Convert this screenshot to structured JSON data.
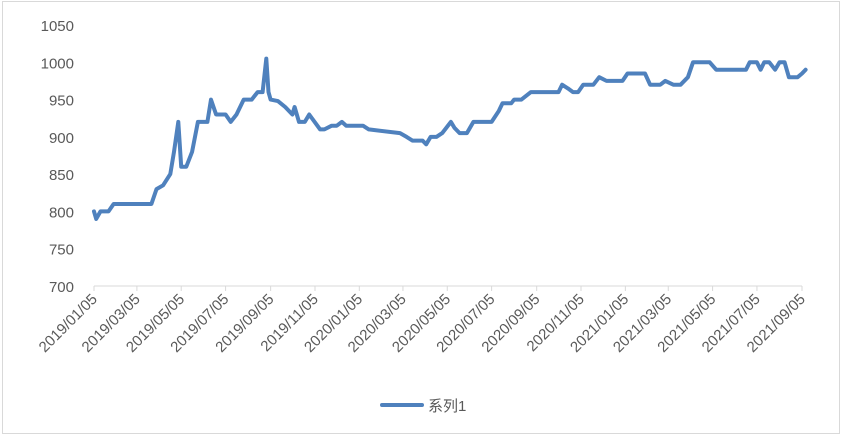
{
  "chart_data": {
    "type": "line",
    "title": "",
    "xlabel": "",
    "ylabel": "",
    "ylim": [
      700,
      1050
    ],
    "yticks": [
      700,
      750,
      800,
      850,
      900,
      950,
      1000,
      1050
    ],
    "xticks": [
      "2019/01/05",
      "2019/03/05",
      "2019/05/05",
      "2019/07/05",
      "2019/09/05",
      "2019/11/05",
      "2020/01/05",
      "2020/03/05",
      "2020/05/05",
      "2020/07/05",
      "2020/09/05",
      "2020/11/05",
      "2021/01/05",
      "2021/03/05",
      "2021/05/05",
      "2021/07/05",
      "2021/09/05"
    ],
    "grid": false,
    "legend": "bottom",
    "series": [
      {
        "name": "系列1",
        "color": "#4F81BD",
        "points": [
          [
            "2019/01/05",
            800
          ],
          [
            "2019/01/08",
            790
          ],
          [
            "2019/01/14",
            800
          ],
          [
            "2019/01/25",
            800
          ],
          [
            "2019/02/01",
            810
          ],
          [
            "2019/02/15",
            810
          ],
          [
            "2019/03/25",
            810
          ],
          [
            "2019/04/01",
            830
          ],
          [
            "2019/04/10",
            835
          ],
          [
            "2019/04/20",
            850
          ],
          [
            "2019/04/25",
            880
          ],
          [
            "2019/05/01",
            920
          ],
          [
            "2019/05/05",
            860
          ],
          [
            "2019/05/12",
            860
          ],
          [
            "2019/05/20",
            880
          ],
          [
            "2019/05/28",
            920
          ],
          [
            "2019/06/10",
            920
          ],
          [
            "2019/06/15",
            950
          ],
          [
            "2019/06/22",
            930
          ],
          [
            "2019/07/05",
            930
          ],
          [
            "2019/07/12",
            920
          ],
          [
            "2019/07/20",
            930
          ],
          [
            "2019/07/30",
            950
          ],
          [
            "2019/08/10",
            950
          ],
          [
            "2019/08/18",
            960
          ],
          [
            "2019/08/25",
            960
          ],
          [
            "2019/08/30",
            1005
          ],
          [
            "2019/09/02",
            960
          ],
          [
            "2019/09/05",
            950
          ],
          [
            "2019/09/15",
            948
          ],
          [
            "2019/09/25",
            940
          ],
          [
            "2019/10/05",
            930
          ],
          [
            "2019/10/08",
            940
          ],
          [
            "2019/10/14",
            920
          ],
          [
            "2019/10/22",
            920
          ],
          [
            "2019/10/28",
            930
          ],
          [
            "2019/11/12",
            910
          ],
          [
            "2019/11/18",
            910
          ],
          [
            "2019/11/28",
            915
          ],
          [
            "2019/12/05",
            915
          ],
          [
            "2019/12/12",
            920
          ],
          [
            "2019/12/18",
            915
          ],
          [
            "2020/01/10",
            915
          ],
          [
            "2020/01/18",
            910
          ],
          [
            "2020/03/01",
            905
          ],
          [
            "2020/03/10",
            900
          ],
          [
            "2020/03/18",
            895
          ],
          [
            "2020/04/01",
            895
          ],
          [
            "2020/04/06",
            890
          ],
          [
            "2020/04/12",
            900
          ],
          [
            "2020/04/20",
            900
          ],
          [
            "2020/04/28",
            905
          ],
          [
            "2020/05/10",
            920
          ],
          [
            "2020/05/15",
            912
          ],
          [
            "2020/05/22",
            905
          ],
          [
            "2020/06/01",
            905
          ],
          [
            "2020/06/10",
            920
          ],
          [
            "2020/06/25",
            920
          ],
          [
            "2020/07/05",
            920
          ],
          [
            "2020/07/15",
            935
          ],
          [
            "2020/07/20",
            945
          ],
          [
            "2020/08/01",
            945
          ],
          [
            "2020/08/05",
            950
          ],
          [
            "2020/08/15",
            950
          ],
          [
            "2020/08/28",
            960
          ],
          [
            "2020/09/10",
            960
          ],
          [
            "2020/10/05",
            960
          ],
          [
            "2020/10/10",
            970
          ],
          [
            "2020/10/18",
            965
          ],
          [
            "2020/10/25",
            960
          ],
          [
            "2020/11/01",
            960
          ],
          [
            "2020/11/08",
            970
          ],
          [
            "2020/11/15",
            970
          ],
          [
            "2020/11/22",
            970
          ],
          [
            "2020/11/30",
            980
          ],
          [
            "2020/12/10",
            975
          ],
          [
            "2021/01/01",
            975
          ],
          [
            "2021/01/08",
            985
          ],
          [
            "2021/02/01",
            985
          ],
          [
            "2021/02/08",
            970
          ],
          [
            "2021/02/22",
            970
          ],
          [
            "2021/03/01",
            975
          ],
          [
            "2021/03/12",
            970
          ],
          [
            "2021/03/22",
            970
          ],
          [
            "2021/04/01",
            980
          ],
          [
            "2021/04/08",
            1000
          ],
          [
            "2021/05/01",
            1000
          ],
          [
            "2021/05/10",
            990
          ],
          [
            "2021/06/20",
            990
          ],
          [
            "2021/06/25",
            1000
          ],
          [
            "2021/07/05",
            1000
          ],
          [
            "2021/07/10",
            990
          ],
          [
            "2021/07/15",
            1000
          ],
          [
            "2021/07/22",
            1000
          ],
          [
            "2021/07/30",
            990
          ],
          [
            "2021/08/05",
            1000
          ],
          [
            "2021/08/12",
            1000
          ],
          [
            "2021/08/18",
            980
          ],
          [
            "2021/08/30",
            980
          ],
          [
            "2021/09/05",
            985
          ],
          [
            "2021/09/10",
            990
          ]
        ]
      }
    ]
  }
}
